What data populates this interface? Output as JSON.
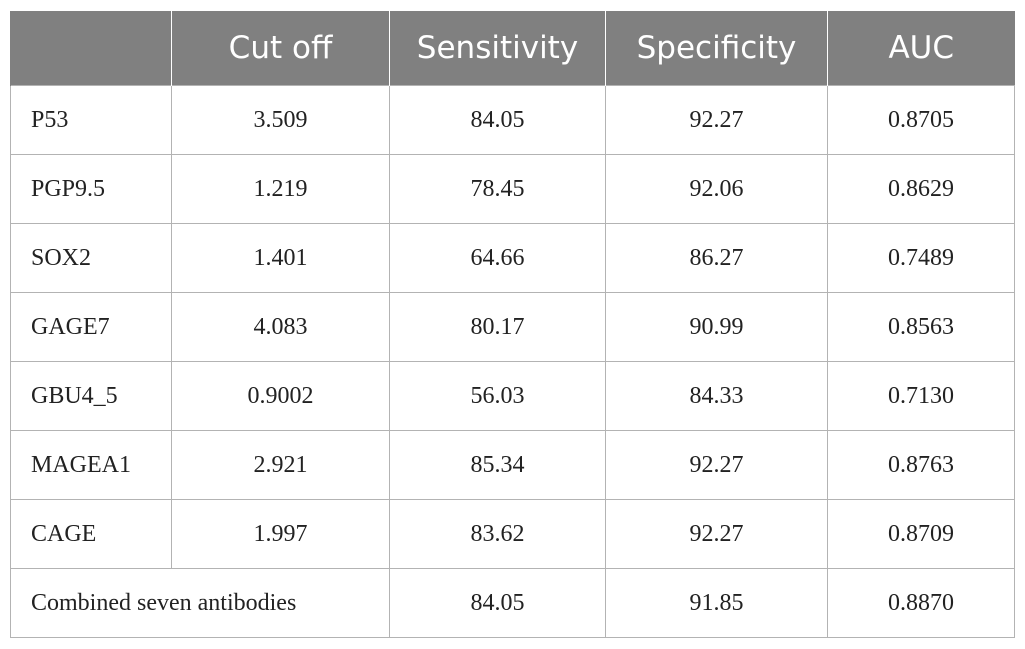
{
  "table": {
    "headers": [
      "",
      "Cut off",
      "Sensitivity",
      "Specificity",
      "AUC"
    ],
    "rows": [
      [
        "P53",
        "3.509",
        "84.05",
        "92.27",
        "0.8705"
      ],
      [
        "PGP9.5",
        "1.219",
        "78.45",
        "92.06",
        "0.8629"
      ],
      [
        "SOX2",
        "1.401",
        "64.66",
        "86.27",
        "0.7489"
      ],
      [
        "GAGE7",
        "4.083",
        "80.17",
        "90.99",
        "0.8563"
      ],
      [
        "GBU4_5",
        "0.9002",
        "56.03",
        "84.33",
        "0.7130"
      ],
      [
        "MAGEA1",
        "2.921",
        "85.34",
        "92.27",
        "0.8763"
      ],
      [
        "CAGE",
        "1.997",
        "83.62",
        "92.27",
        "0.8709"
      ]
    ],
    "combined": [
      "Combined seven antibodies",
      "84.05",
      "91.85",
      "0.8870"
    ]
  }
}
